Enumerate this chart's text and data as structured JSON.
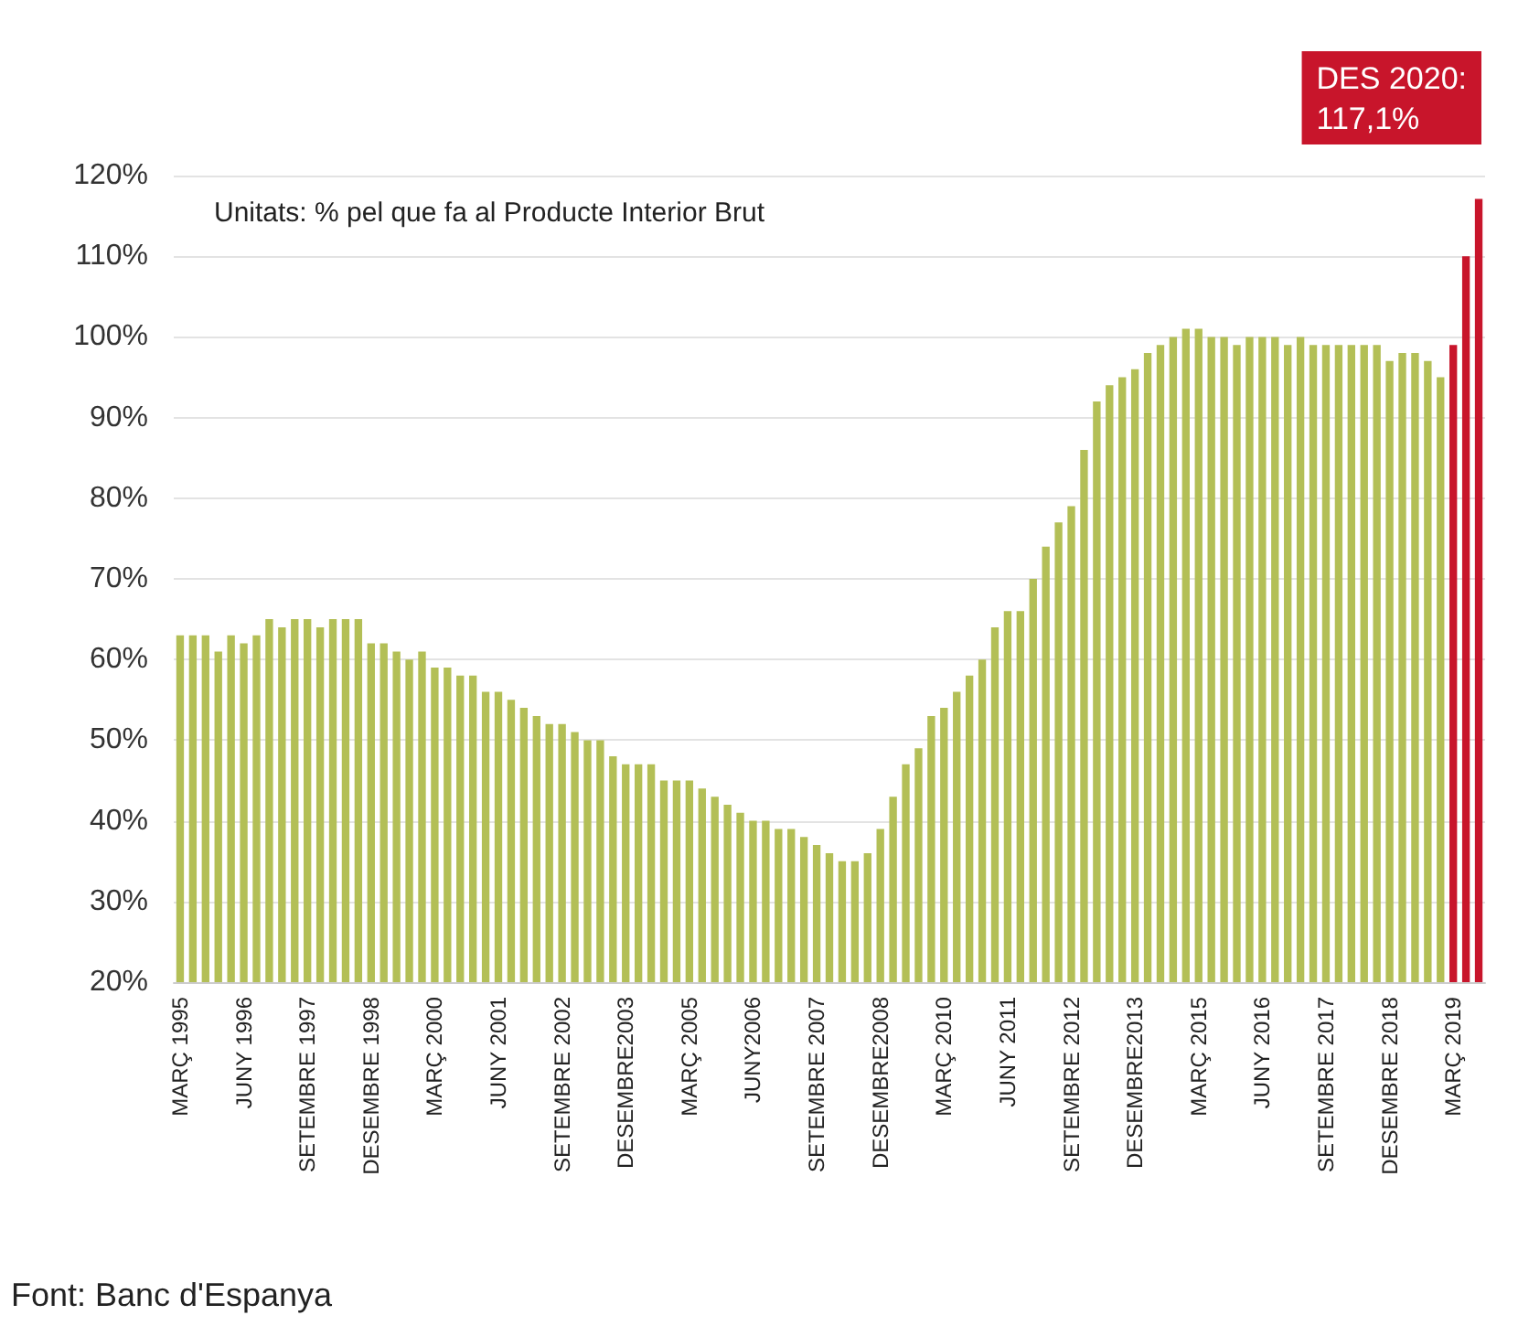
{
  "chart_data": {
    "type": "bar",
    "subtitle": "Unitats: % pel que fa al Producte Interior Brut",
    "annotations": [
      "Font: Banc d'Espanya",
      "DES 2020:\n117,1%"
    ],
    "categories": [
      "MARÇ 1995",
      null,
      null,
      null,
      null,
      "JUNY 1996",
      null,
      null,
      null,
      null,
      "SETEMBRE 1997",
      null,
      null,
      null,
      null,
      "DESEMBRE 1998",
      null,
      null,
      null,
      null,
      "MARÇ 2000",
      null,
      null,
      null,
      null,
      "JUNY 2001",
      null,
      null,
      null,
      null,
      "SETEMBRE 2002",
      null,
      null,
      null,
      null,
      "DESEMBRE2003",
      null,
      null,
      null,
      null,
      "MARÇ 2005",
      null,
      null,
      null,
      null,
      "JUNY2006",
      null,
      null,
      null,
      null,
      "SETEMBRE 2007",
      null,
      null,
      null,
      null,
      "DESEMBRE2008",
      null,
      null,
      null,
      null,
      "MARÇ 2010",
      null,
      null,
      null,
      null,
      "JUNY 2011",
      null,
      null,
      null,
      null,
      "SETEMBRE 2012",
      null,
      null,
      null,
      null,
      "DESEMBRE2013",
      null,
      null,
      null,
      null,
      "MARÇ 2015",
      null,
      null,
      null,
      null,
      "JUNY 2016",
      null,
      null,
      null,
      null,
      "SETEMBRE 2017",
      null,
      null,
      null,
      null,
      "DESEMBRE 2018",
      null,
      null,
      null,
      null,
      "MARÇ 2019",
      null,
      null
    ],
    "values": [
      63,
      63,
      63,
      61,
      63,
      62,
      63,
      65,
      64,
      65,
      65,
      64,
      65,
      65,
      65,
      62,
      62,
      61,
      60,
      61,
      59,
      59,
      58,
      58,
      56,
      56,
      55,
      54,
      53,
      52,
      52,
      51,
      50,
      50,
      48,
      47,
      47,
      47,
      45,
      45,
      45,
      44,
      43,
      42,
      41,
      40,
      40,
      39,
      39,
      38,
      37,
      36,
      35,
      35,
      36,
      39,
      43,
      47,
      49,
      53,
      54,
      56,
      58,
      60,
      64,
      66,
      66,
      70,
      74,
      77,
      79,
      86,
      92,
      94,
      95,
      96,
      98,
      99,
      100,
      101,
      101,
      100,
      100,
      99,
      100,
      100,
      100,
      99,
      100,
      99,
      99,
      99,
      99,
      99,
      99,
      97,
      98,
      98,
      97,
      95,
      99,
      110,
      117.1
    ],
    "colors": [
      "#b3bf56",
      "#b3bf56",
      "#b3bf56",
      "#b3bf56",
      "#b3bf56",
      "#b3bf56",
      "#b3bf56",
      "#b3bf56",
      "#b3bf56",
      "#b3bf56",
      "#b3bf56",
      "#b3bf56",
      "#b3bf56",
      "#b3bf56",
      "#b3bf56",
      "#b3bf56",
      "#b3bf56",
      "#b3bf56",
      "#b3bf56",
      "#b3bf56",
      "#b3bf56",
      "#b3bf56",
      "#b3bf56",
      "#b3bf56",
      "#b3bf56",
      "#b3bf56",
      "#b3bf56",
      "#b3bf56",
      "#b3bf56",
      "#b3bf56",
      "#b3bf56",
      "#b3bf56",
      "#b3bf56",
      "#b3bf56",
      "#b3bf56",
      "#b3bf56",
      "#b3bf56",
      "#b3bf56",
      "#b3bf56",
      "#b3bf56",
      "#b3bf56",
      "#b3bf56",
      "#b3bf56",
      "#b3bf56",
      "#b3bf56",
      "#b3bf56",
      "#b3bf56",
      "#b3bf56",
      "#b3bf56",
      "#b3bf56",
      "#b3bf56",
      "#b3bf56",
      "#b3bf56",
      "#b3bf56",
      "#b3bf56",
      "#b3bf56",
      "#b3bf56",
      "#b3bf56",
      "#b3bf56",
      "#b3bf56",
      "#b3bf56",
      "#b3bf56",
      "#b3bf56",
      "#b3bf56",
      "#b3bf56",
      "#b3bf56",
      "#b3bf56",
      "#b3bf56",
      "#b3bf56",
      "#b3bf56",
      "#b3bf56",
      "#b3bf56",
      "#b3bf56",
      "#b3bf56",
      "#b3bf56",
      "#b3bf56",
      "#b3bf56",
      "#b3bf56",
      "#b3bf56",
      "#b3bf56",
      "#b3bf56",
      "#b3bf56",
      "#b3bf56",
      "#b3bf56",
      "#b3bf56",
      "#b3bf56",
      "#b3bf56",
      "#b3bf56",
      "#b3bf56",
      "#b3bf56",
      "#b3bf56",
      "#b3bf56",
      "#b3bf56",
      "#b3bf56",
      "#b3bf56",
      "#b3bf56",
      "#b3bf56",
      "#b3bf56",
      "#b3bf56",
      "#b3bf56",
      "#c8152b",
      "#c8152b",
      "#c8152b"
    ],
    "ylim": [
      20,
      120
    ],
    "yticks": [
      {
        "value": 20,
        "label": "20%"
      },
      {
        "value": 30,
        "label": "30%"
      },
      {
        "value": 40,
        "label": "40%"
      },
      {
        "value": 50,
        "label": "50%"
      },
      {
        "value": 60,
        "label": "60%"
      },
      {
        "value": 70,
        "label": "70%"
      },
      {
        "value": 80,
        "label": "80%"
      },
      {
        "value": 90,
        "label": "90%"
      },
      {
        "value": 100,
        "label": "100%"
      },
      {
        "value": 110,
        "label": "110%"
      },
      {
        "value": 120,
        "label": "120%"
      }
    ],
    "grid": "y"
  }
}
